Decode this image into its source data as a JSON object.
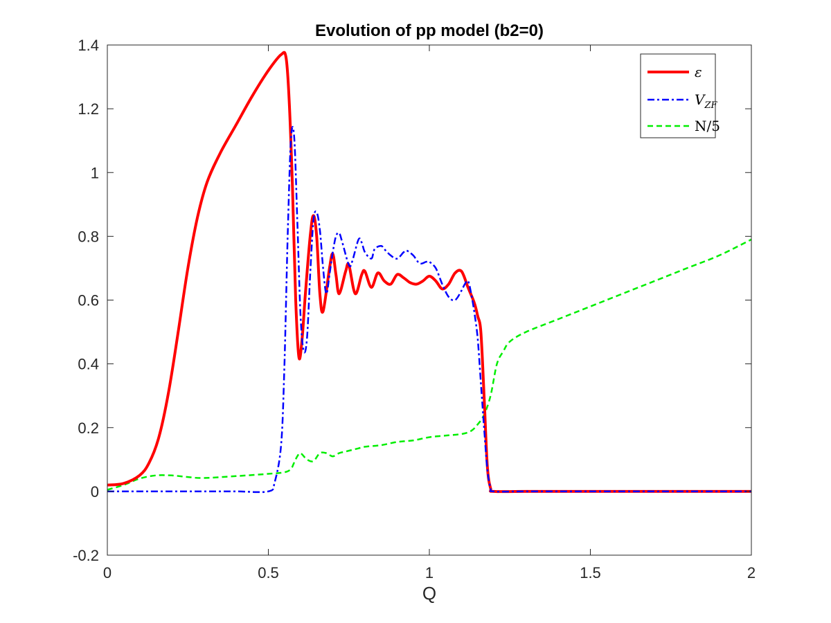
{
  "chart_data": {
    "type": "line",
    "title": "Evolution of pp model (b2=0)",
    "xlabel": "Q",
    "ylabel": "",
    "xlim": [
      0,
      2
    ],
    "ylim": [
      -0.2,
      1.4
    ],
    "xticks": [
      "0",
      "0.5",
      "1",
      "1.5",
      "2"
    ],
    "yticks": [
      "-0.2",
      "0",
      "0.2",
      "0.4",
      "0.6",
      "0.8",
      "1",
      "1.2",
      "1.4"
    ],
    "grid": false,
    "legend_position": "top-right",
    "series": [
      {
        "name": "ε",
        "color": "#ff0000",
        "style": "solid",
        "x": [
          0,
          0.05,
          0.1,
          0.13,
          0.16,
          0.19,
          0.22,
          0.25,
          0.28,
          0.31,
          0.35,
          0.4,
          0.45,
          0.5,
          0.54,
          0.555,
          0.565,
          0.575,
          0.585,
          0.595,
          0.605,
          0.615,
          0.63,
          0.64,
          0.65,
          0.66,
          0.67,
          0.69,
          0.7,
          0.71,
          0.72,
          0.74,
          0.75,
          0.77,
          0.79,
          0.8,
          0.82,
          0.84,
          0.86,
          0.88,
          0.9,
          0.92,
          0.94,
          0.96,
          0.98,
          1.0,
          1.02,
          1.04,
          1.06,
          1.08,
          1.1,
          1.12,
          1.14,
          1.15,
          1.16,
          1.17,
          1.18,
          1.19,
          1.2,
          1.3,
          1.5,
          1.7,
          2.0
        ],
        "y": [
          0.02,
          0.025,
          0.05,
          0.09,
          0.17,
          0.31,
          0.5,
          0.7,
          0.86,
          0.97,
          1.06,
          1.15,
          1.24,
          1.32,
          1.37,
          1.36,
          1.22,
          0.95,
          0.6,
          0.42,
          0.48,
          0.62,
          0.8,
          0.865,
          0.8,
          0.62,
          0.565,
          0.7,
          0.745,
          0.68,
          0.62,
          0.69,
          0.71,
          0.62,
          0.68,
          0.69,
          0.64,
          0.685,
          0.66,
          0.65,
          0.68,
          0.67,
          0.655,
          0.65,
          0.66,
          0.675,
          0.66,
          0.635,
          0.65,
          0.685,
          0.69,
          0.64,
          0.59,
          0.55,
          0.5,
          0.3,
          0.08,
          0.01,
          0.0,
          0.0,
          0.0,
          0.0,
          0.0
        ]
      },
      {
        "name": "V",
        "name_subscript": "ZF",
        "color": "#0000ff",
        "style": "dashdot",
        "x": [
          0,
          0.05,
          0.1,
          0.2,
          0.3,
          0.4,
          0.5,
          0.52,
          0.54,
          0.55,
          0.56,
          0.57,
          0.58,
          0.59,
          0.6,
          0.61,
          0.62,
          0.63,
          0.64,
          0.65,
          0.66,
          0.67,
          0.68,
          0.69,
          0.7,
          0.71,
          0.72,
          0.73,
          0.75,
          0.76,
          0.78,
          0.79,
          0.8,
          0.82,
          0.83,
          0.85,
          0.86,
          0.88,
          0.9,
          0.92,
          0.93,
          0.95,
          0.97,
          0.99,
          1.0,
          1.02,
          1.04,
          1.06,
          1.08,
          1.1,
          1.11,
          1.12,
          1.13,
          1.14,
          1.15,
          1.16,
          1.17,
          1.18,
          1.19,
          1.2,
          1.3,
          1.5,
          1.7,
          2.0
        ],
        "y": [
          0.0,
          0.0,
          0.0,
          0.0,
          0.0,
          0.0,
          0.0,
          0.03,
          0.15,
          0.4,
          0.8,
          1.1,
          1.115,
          0.85,
          0.55,
          0.44,
          0.48,
          0.68,
          0.85,
          0.875,
          0.82,
          0.7,
          0.62,
          0.68,
          0.75,
          0.8,
          0.81,
          0.78,
          0.71,
          0.72,
          0.79,
          0.78,
          0.75,
          0.73,
          0.76,
          0.77,
          0.76,
          0.74,
          0.73,
          0.75,
          0.755,
          0.74,
          0.715,
          0.72,
          0.72,
          0.7,
          0.65,
          0.61,
          0.6,
          0.63,
          0.65,
          0.66,
          0.62,
          0.56,
          0.48,
          0.34,
          0.2,
          0.07,
          0.01,
          0.0,
          0.0,
          0.0,
          0.0,
          0.0
        ]
      },
      {
        "name": "N/5",
        "color": "#00ee00",
        "style": "dashed",
        "x": [
          0,
          0.05,
          0.1,
          0.15,
          0.2,
          0.25,
          0.3,
          0.4,
          0.5,
          0.55,
          0.57,
          0.58,
          0.59,
          0.6,
          0.62,
          0.64,
          0.66,
          0.68,
          0.7,
          0.72,
          0.74,
          0.76,
          0.78,
          0.8,
          0.85,
          0.9,
          0.95,
          1.0,
          1.05,
          1.1,
          1.13,
          1.15,
          1.17,
          1.19,
          1.21,
          1.23,
          1.25,
          1.3,
          1.4,
          1.5,
          1.6,
          1.7,
          1.8,
          1.9,
          2.0
        ],
        "y": [
          0.005,
          0.02,
          0.04,
          0.05,
          0.05,
          0.045,
          0.042,
          0.048,
          0.055,
          0.06,
          0.07,
          0.09,
          0.11,
          0.12,
          0.1,
          0.095,
          0.12,
          0.12,
          0.11,
          0.12,
          0.125,
          0.13,
          0.135,
          0.14,
          0.145,
          0.155,
          0.16,
          0.17,
          0.175,
          0.18,
          0.19,
          0.21,
          0.24,
          0.3,
          0.4,
          0.44,
          0.47,
          0.5,
          0.54,
          0.58,
          0.62,
          0.66,
          0.7,
          0.74,
          0.79
        ]
      }
    ]
  }
}
